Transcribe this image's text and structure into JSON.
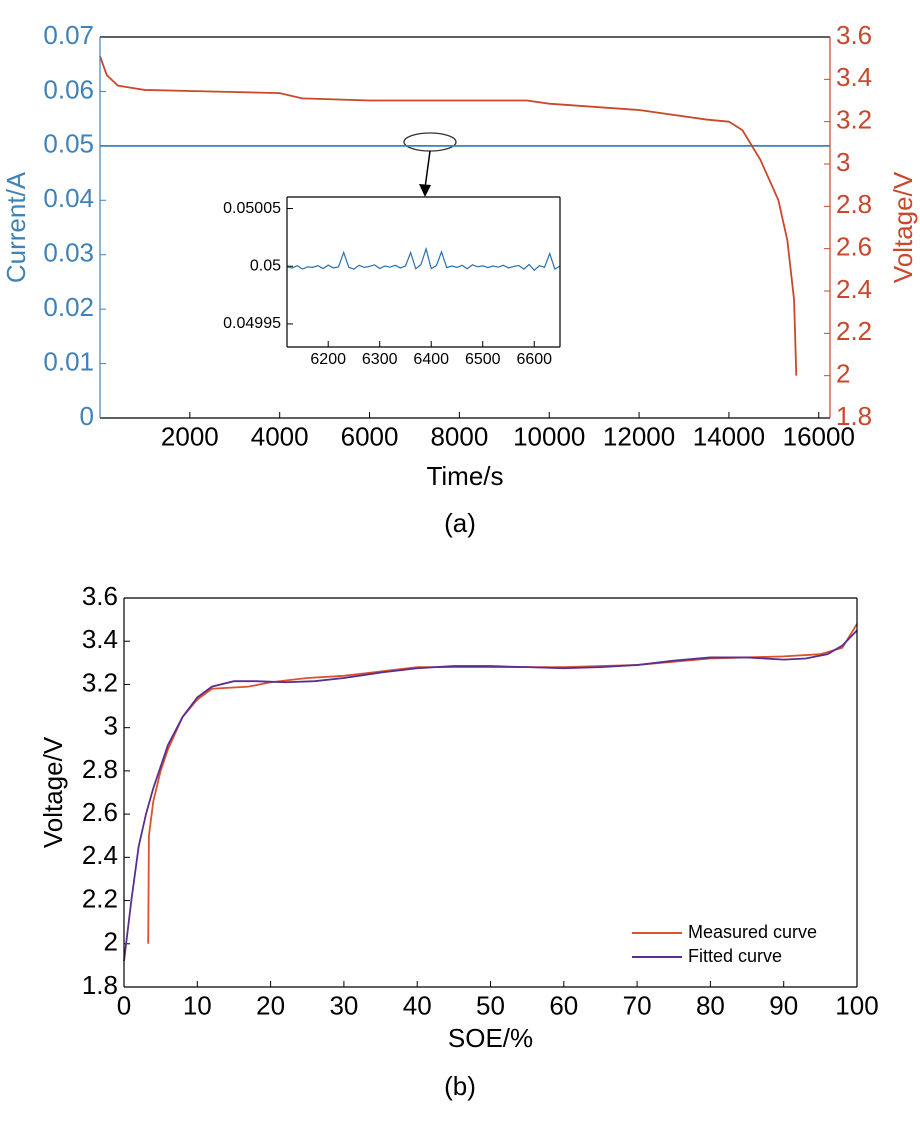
{
  "chart_data": [
    {
      "type": "line",
      "caption": "(a)",
      "xlabel": "Time/s",
      "ylabel": "Current/A",
      "y2label": "Voltage/V",
      "xlim": [
        0,
        16250
      ],
      "xticks": [
        2000,
        4000,
        6000,
        8000,
        10000,
        12000,
        14000,
        16000
      ],
      "ylim": [
        0,
        0.07
      ],
      "yticks": [
        0,
        0.01,
        0.02,
        0.03,
        0.04,
        0.05,
        0.06,
        0.07
      ],
      "y2lim": [
        1.8,
        3.6
      ],
      "y2ticks": [
        1.8,
        2,
        2.2,
        2.4,
        2.6,
        2.8,
        3,
        3.2,
        3.4,
        3.6
      ],
      "series": [
        {
          "name": "Current",
          "color": "#3f82b8",
          "x": [
            0,
            16250
          ],
          "values": [
            0.05,
            0.05
          ]
        },
        {
          "name": "Voltage",
          "color": "#c9472a",
          "axis": "y2",
          "x": [
            0,
            150,
            400,
            1000,
            2000,
            4000,
            4500,
            6000,
            8000,
            9500,
            10000,
            12000,
            13500,
            14000,
            14300,
            14700,
            15100,
            15300,
            15450,
            15500
          ],
          "values": [
            3.51,
            3.42,
            3.37,
            3.35,
            3.345,
            3.335,
            3.31,
            3.3,
            3.3,
            3.3,
            3.285,
            3.255,
            3.21,
            3.2,
            3.16,
            3.02,
            2.83,
            2.64,
            2.36,
            2.0
          ]
        }
      ]
    },
    {
      "type": "line",
      "xlim": [
        6120,
        6650
      ],
      "xticks": [
        6200,
        6300,
        6400,
        6500,
        6600
      ],
      "ylim": [
        0.04993,
        0.05006
      ],
      "yticks": [
        0.04995,
        0.05,
        0.05005
      ],
      "series": [
        {
          "name": "Current",
          "color": "#2a6fad",
          "x": [
            6120,
            6130,
            6140,
            6150,
            6160,
            6170,
            6180,
            6190,
            6200,
            6210,
            6220,
            6230,
            6240,
            6250,
            6260,
            6270,
            6280,
            6290,
            6300,
            6310,
            6320,
            6330,
            6340,
            6350,
            6360,
            6370,
            6380,
            6390,
            6400,
            6410,
            6420,
            6430,
            6440,
            6450,
            6460,
            6470,
            6480,
            6490,
            6500,
            6510,
            6520,
            6530,
            6540,
            6550,
            6560,
            6570,
            6580,
            6590,
            6600,
            6610,
            6620,
            6630,
            6640,
            6650
          ],
          "values": [
            0.0499995,
            0.0499985,
            0.0500005,
            0.0499975,
            0.0499995,
            0.049999,
            0.0500005,
            0.049998,
            0.050001,
            0.0499985,
            0.0499995,
            0.050012,
            0.049999,
            0.0499975,
            0.0500008,
            0.049999,
            0.0499998,
            0.0500012,
            0.049998,
            0.0500002,
            0.0499992,
            0.0500008,
            0.0499985,
            0.0500002,
            0.0500118,
            0.0499978,
            0.0500014,
            0.050015,
            0.049998,
            0.0500005,
            0.0500125,
            0.0499988,
            0.0500002,
            0.049999,
            0.0500008,
            0.0499978,
            0.0500012,
            0.0499995,
            0.0500004,
            0.0499988,
            0.0500002,
            0.0499992,
            0.0500008,
            0.0499985,
            0.0499998,
            0.0500006,
            0.0499975,
            0.0500015,
            0.0499965,
            0.0500005,
            0.049999,
            0.050011,
            0.0499975,
            0.0500002
          ]
        }
      ]
    },
    {
      "type": "line",
      "caption": "(b)",
      "xlabel": "SOE/%",
      "ylabel": "Voltage/V",
      "legend": "lower right",
      "xlim": [
        0,
        100
      ],
      "xticks": [
        0,
        10,
        20,
        30,
        40,
        50,
        60,
        70,
        80,
        90,
        100
      ],
      "ylim": [
        1.8,
        3.6
      ],
      "yticks": [
        1.8,
        2,
        2.2,
        2.4,
        2.6,
        2.8,
        3,
        3.2,
        3.4,
        3.6
      ],
      "series": [
        {
          "name": "Measured curve",
          "color": "#d9542c",
          "x": [
            3.3,
            3.4,
            4,
            5,
            6,
            8,
            10,
            12,
            17,
            20,
            25,
            30,
            35,
            40,
            50,
            60,
            70,
            80,
            90,
            95,
            98,
            100
          ],
          "values": [
            2.0,
            2.5,
            2.66,
            2.8,
            2.9,
            3.05,
            3.13,
            3.18,
            3.19,
            3.21,
            3.23,
            3.24,
            3.26,
            3.28,
            3.28,
            3.28,
            3.29,
            3.32,
            3.33,
            3.34,
            3.37,
            3.48
          ]
        },
        {
          "name": "Fitted curve",
          "color": "#5a2d91",
          "x": [
            0,
            1,
            2,
            3,
            4,
            6,
            8,
            10,
            12,
            15,
            18,
            22,
            26,
            30,
            35,
            40,
            45,
            50,
            55,
            60,
            65,
            70,
            75,
            80,
            85,
            90,
            93,
            96,
            98,
            100
          ],
          "values": [
            1.92,
            2.2,
            2.45,
            2.6,
            2.72,
            2.92,
            3.05,
            3.14,
            3.19,
            3.215,
            3.215,
            3.21,
            3.215,
            3.23,
            3.255,
            3.275,
            3.285,
            3.285,
            3.28,
            3.275,
            3.28,
            3.29,
            3.31,
            3.325,
            3.325,
            3.315,
            3.32,
            3.34,
            3.38,
            3.45
          ]
        }
      ]
    }
  ]
}
